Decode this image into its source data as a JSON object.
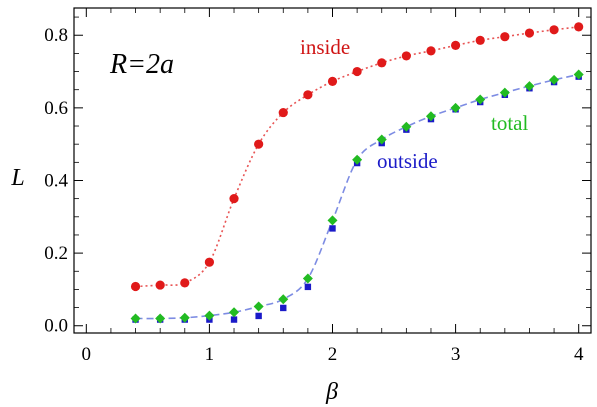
{
  "chart_data": {
    "type": "scatter",
    "xlabel": "β",
    "ylabel": "L",
    "xlim": [
      -0.1,
      4.1
    ],
    "ylim": [
      -0.02,
      0.875
    ],
    "xticks": [
      0,
      1,
      2,
      3,
      4
    ],
    "xtick_labels": [
      "0",
      "1",
      "2",
      "3",
      "4"
    ],
    "yticks": [
      0.0,
      0.2,
      0.4,
      0.6,
      0.8
    ],
    "ytick_labels": [
      "0.0",
      "0.2",
      "0.4",
      "0.6",
      "0.8"
    ],
    "annotation": "R=2a",
    "grid": false,
    "x": [
      0.4,
      0.6,
      0.8,
      1.0,
      1.2,
      1.4,
      1.6,
      1.8,
      2.0,
      2.2,
      2.4,
      2.6,
      2.8,
      3.0,
      3.2,
      3.4,
      3.6,
      3.8,
      4.0
    ],
    "series": [
      {
        "name": "inside",
        "color": "#e01a1a",
        "marker": "circle",
        "line": "dotted",
        "values": [
          0.108,
          0.112,
          0.118,
          0.175,
          0.35,
          0.5,
          0.587,
          0.636,
          0.673,
          0.7,
          0.724,
          0.743,
          0.757,
          0.772,
          0.786,
          0.796,
          0.806,
          0.815,
          0.823
        ]
      },
      {
        "name": "outside",
        "color": "#1a1ac8",
        "marker": "square",
        "line": "none",
        "values": [
          0.017,
          0.017,
          0.017,
          0.017,
          0.017,
          0.027,
          0.049,
          0.107,
          0.268,
          0.448,
          0.503,
          0.54,
          0.569,
          0.596,
          0.616,
          0.636,
          0.654,
          0.671,
          0.686
        ]
      },
      {
        "name": "total",
        "color": "#22bb22",
        "marker": "diamond",
        "line": "dashed",
        "line_color": "#6f7fe0",
        "values": [
          0.02,
          0.02,
          0.022,
          0.028,
          0.037,
          0.053,
          0.073,
          0.13,
          0.29,
          0.457,
          0.513,
          0.548,
          0.577,
          0.6,
          0.623,
          0.642,
          0.66,
          0.677,
          0.692
        ]
      }
    ]
  }
}
